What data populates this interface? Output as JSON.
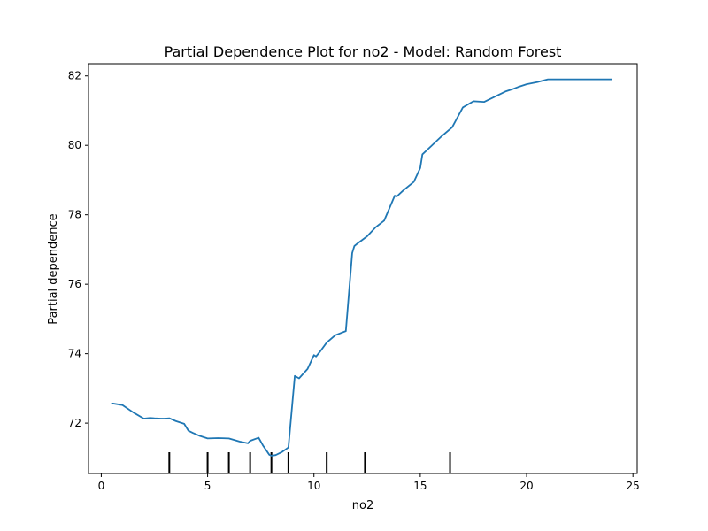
{
  "chart_data": {
    "type": "line",
    "title": "Partial Dependence Plot for no2 - Model: Random Forest",
    "xlabel": "no2",
    "ylabel": "Partial dependence",
    "xlim": [
      -0.6,
      25.2
    ],
    "ylim": [
      70.55,
      82.35
    ],
    "xticks": [
      0,
      5,
      10,
      15,
      20,
      25
    ],
    "yticks": [
      72,
      74,
      76,
      78,
      80,
      82
    ],
    "grid": false,
    "line_color": "#1f77b4",
    "rug_color": "#000000",
    "rug_x": [
      3.2,
      5.0,
      6.0,
      7.0,
      8.0,
      8.8,
      10.6,
      12.4,
      16.4
    ],
    "series": [
      {
        "x": [
          0.5,
          1.0,
          1.5,
          2.0,
          2.3,
          2.5,
          2.8,
          3.0,
          3.2,
          3.5,
          3.9,
          4.1,
          4.3,
          4.6,
          5.0,
          5.5,
          6.0,
          6.5,
          6.9,
          7.0,
          7.4,
          7.6,
          7.9,
          8.0,
          8.2,
          8.5,
          8.8,
          9.1,
          9.3,
          9.7,
          10.0,
          10.1,
          10.3,
          10.6,
          11.0,
          11.5,
          11.8,
          11.9,
          12.0,
          12.5,
          12.9,
          13.3,
          13.8,
          13.9,
          14.2,
          14.7,
          15.0,
          15.1,
          15.5,
          16.0,
          16.5,
          17.0,
          17.5,
          18.0,
          18.5,
          19.0,
          19.3,
          19.6,
          20.0,
          20.5,
          21.0,
          22.0,
          23.0,
          24.0
        ],
        "y": [
          72.57,
          72.52,
          72.31,
          72.13,
          72.15,
          72.14,
          72.13,
          72.13,
          72.14,
          72.06,
          71.98,
          71.78,
          71.72,
          71.64,
          71.56,
          71.57,
          71.56,
          71.47,
          71.42,
          71.49,
          71.58,
          71.36,
          71.09,
          71.06,
          71.08,
          71.17,
          71.3,
          73.36,
          73.29,
          73.56,
          73.96,
          73.92,
          74.07,
          74.32,
          74.53,
          74.65,
          76.9,
          77.1,
          77.15,
          77.38,
          77.64,
          77.83,
          78.55,
          78.53,
          78.7,
          78.95,
          79.35,
          79.74,
          79.97,
          80.26,
          80.52,
          81.09,
          81.27,
          81.25,
          81.4,
          81.55,
          81.61,
          81.68,
          81.76,
          81.82,
          81.9,
          81.9,
          81.9,
          81.9
        ]
      }
    ]
  }
}
